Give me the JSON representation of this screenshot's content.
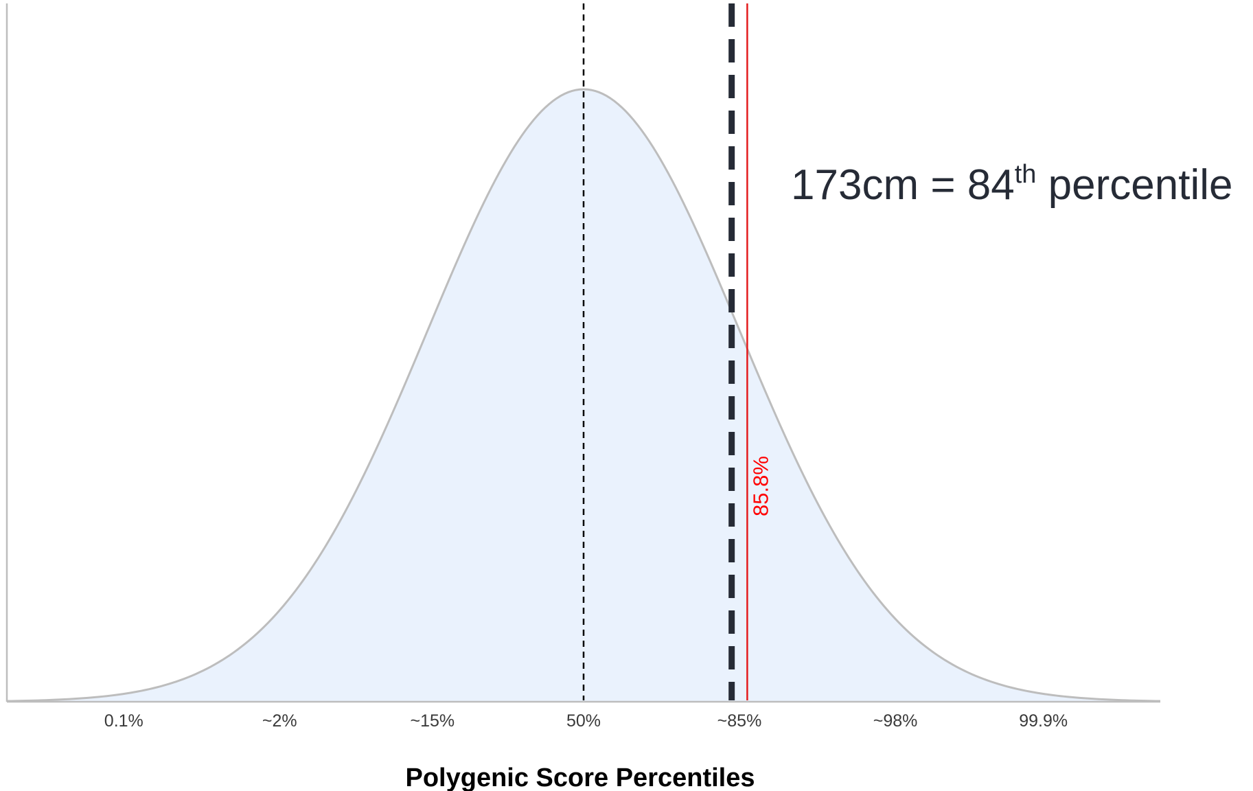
{
  "chart_data": {
    "type": "area",
    "description_series": "standard normal density",
    "x": [
      -4,
      -3.75,
      -3.5,
      -3.25,
      -3,
      -2.75,
      -2.5,
      -2.25,
      -2,
      -1.75,
      -1.5,
      -1.25,
      -1,
      -0.75,
      -0.5,
      -0.25,
      0,
      0.25,
      0.5,
      0.75,
      1,
      1.25,
      1.5,
      1.75,
      2,
      2.25,
      2.5,
      2.75,
      3,
      3.25,
      3.5,
      3.75,
      4
    ],
    "y": [
      0.0001,
      0.0004,
      0.0009,
      0.002,
      0.0044,
      0.0091,
      0.0175,
      0.0317,
      0.054,
      0.0863,
      0.1295,
      0.1826,
      0.242,
      0.3011,
      0.3521,
      0.3867,
      0.3989,
      0.3867,
      0.3521,
      0.3011,
      0.242,
      0.1826,
      0.1295,
      0.0863,
      0.054,
      0.0317,
      0.0175,
      0.0091,
      0.0044,
      0.002,
      0.0009,
      0.0004,
      0.0001
    ],
    "xlim": [
      -3.7,
      3.7
    ],
    "ylim": [
      0,
      0.4
    ],
    "x_ticks": [
      {
        "x": -2.95,
        "label": "0.1%"
      },
      {
        "x": -1.95,
        "label": "~2%"
      },
      {
        "x": -0.97,
        "label": "~15%"
      },
      {
        "x": 0,
        "label": "50%"
      },
      {
        "x": 1.0,
        "label": "~85%"
      },
      {
        "x": 2.0,
        "label": "~98%"
      },
      {
        "x": 2.95,
        "label": "99.9%"
      }
    ],
    "xlabel": "Polygenic Score Percentiles",
    "ylabel": "",
    "fill_color": "#eaf2fd",
    "curve_color": "#bdbdbd",
    "axis_color": "#bdbdbd",
    "grid": false,
    "vlines": [
      {
        "x": 0,
        "style": "dashed-thin",
        "color": "#000000"
      },
      {
        "x": 0.95,
        "style": "dashed-thick",
        "color": "#262b36"
      },
      {
        "x": 1.05,
        "style": "solid",
        "color": "#e31a1c",
        "label": "85.8%",
        "label_color": "#ff0000"
      }
    ],
    "annotation": {
      "text_before": "173cm = 84",
      "superscript": "th",
      "text_after": " percentile",
      "color": "#262b36"
    }
  }
}
